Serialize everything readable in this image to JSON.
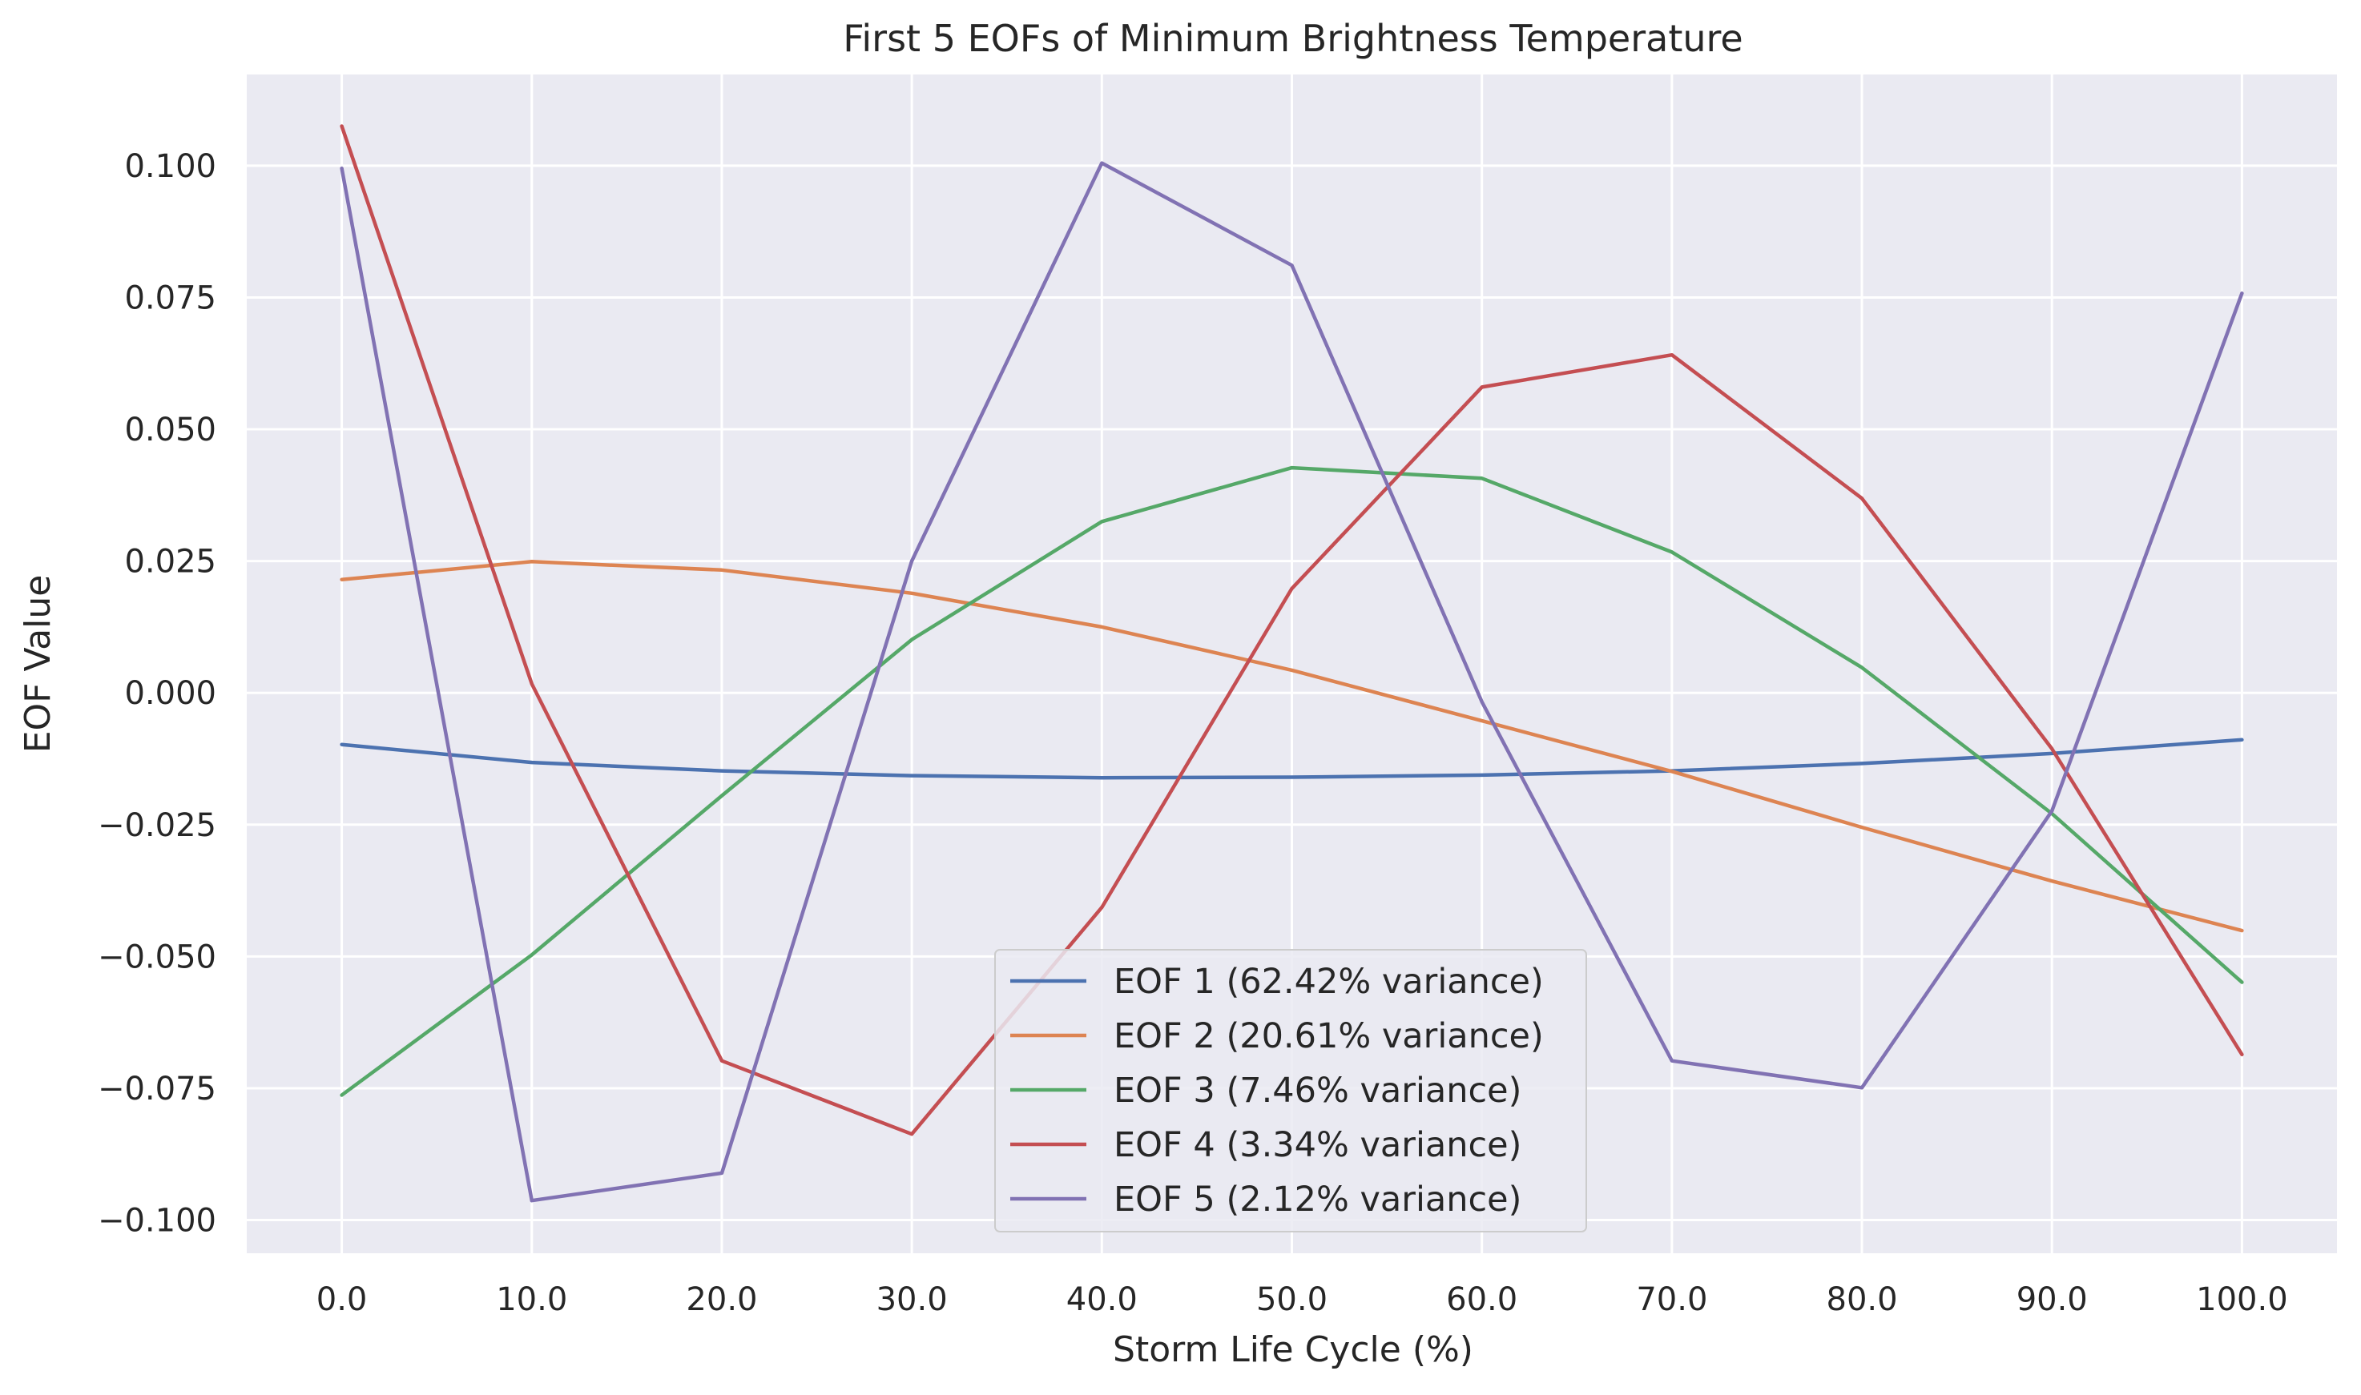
{
  "chart_data": {
    "type": "line",
    "title": "First 5 EOFs of Minimum Brightness Temperature",
    "xlabel": "Storm Life Cycle (%)",
    "ylabel": "EOF Value",
    "x": [
      0,
      10,
      20,
      30,
      40,
      50,
      60,
      70,
      80,
      90,
      100
    ],
    "x_tick_labels": [
      "0.0",
      "10.0",
      "20.0",
      "30.0",
      "40.0",
      "50.0",
      "60.0",
      "70.0",
      "80.0",
      "90.0",
      "100.0"
    ],
    "y_ticks": [
      -0.1,
      -0.075,
      -0.05,
      -0.025,
      0.0,
      0.025,
      0.05,
      0.075,
      0.1
    ],
    "y_tick_labels": [
      "−0.100",
      "−0.075",
      "−0.050",
      "−0.025",
      "0.000",
      "0.025",
      "0.050",
      "0.075",
      "0.100"
    ],
    "xlim": [
      -5,
      105
    ],
    "ylim": [
      -0.1063,
      0.1173
    ],
    "grid": true,
    "legend_position": "bottom-center",
    "series": [
      {
        "name": "EOF 1 (62.42% variance)",
        "color": "#4c72b0",
        "values": [
          -0.0098,
          -0.0132,
          -0.0148,
          -0.0157,
          -0.0161,
          -0.016,
          -0.0156,
          -0.0148,
          -0.0134,
          -0.0115,
          -0.0089
        ]
      },
      {
        "name": "EOF 2 (20.61% variance)",
        "color": "#dd8452",
        "values": [
          0.0215,
          0.0249,
          0.0233,
          0.0189,
          0.0125,
          0.0043,
          -0.0053,
          -0.0149,
          -0.0255,
          -0.0357,
          -0.0451
        ]
      },
      {
        "name": "EOF 3 (7.46% variance)",
        "color": "#55a868",
        "values": [
          -0.0763,
          -0.0497,
          -0.0195,
          0.0101,
          0.0325,
          0.0427,
          0.0407,
          0.0267,
          0.0048,
          -0.0229,
          -0.0549
        ]
      },
      {
        "name": "EOF 4 (3.34% variance)",
        "color": "#c44e52",
        "values": [
          0.1075,
          0.0017,
          -0.0698,
          -0.0837,
          -0.0407,
          0.0198,
          0.058,
          0.0641,
          0.0369,
          -0.0106,
          -0.0686
        ]
      },
      {
        "name": "EOF 5 (2.12% variance)",
        "color": "#8172b3",
        "values": [
          0.0995,
          -0.0963,
          -0.0911,
          0.025,
          0.1005,
          0.0811,
          -0.0017,
          -0.0698,
          -0.0749,
          -0.0224,
          0.0758
        ]
      }
    ]
  }
}
